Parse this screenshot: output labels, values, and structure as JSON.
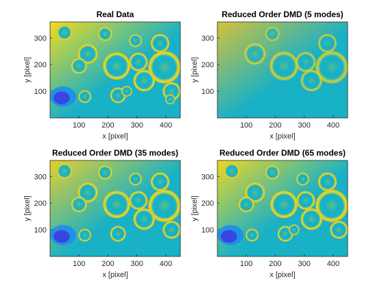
{
  "chart_data": [
    {
      "type": "heatmap",
      "title": "Real Data",
      "xlabel": "x [pixel]",
      "ylabel": "y [pixel]",
      "xlim": [
        0,
        450
      ],
      "ylim": [
        0,
        360
      ],
      "xticks": [
        100,
        200,
        300,
        400
      ],
      "yticks": [
        100,
        200,
        300
      ],
      "colormap": "parula",
      "colors": [
        "#3d3ee0",
        "#1f8fe8",
        "#19b1c6",
        "#5ec27d",
        "#c8bf3a",
        "#f4dc1a"
      ],
      "background_color": "#f4dc1a",
      "blobs": [
        {
          "x": 50,
          "y": 320,
          "r": 22
        },
        {
          "x": 130,
          "y": 240,
          "r": 28
        },
        {
          "x": 190,
          "y": 315,
          "r": 20
        },
        {
          "x": 230,
          "y": 195,
          "r": 38
        },
        {
          "x": 100,
          "y": 195,
          "r": 22
        },
        {
          "x": 295,
          "y": 290,
          "r": 18
        },
        {
          "x": 305,
          "y": 210,
          "r": 26
        },
        {
          "x": 395,
          "y": 190,
          "r": 45
        },
        {
          "x": 380,
          "y": 280,
          "r": 26
        },
        {
          "x": 420,
          "y": 100,
          "r": 25
        },
        {
          "x": 325,
          "y": 140,
          "r": 30
        },
        {
          "x": 120,
          "y": 80,
          "r": 18
        },
        {
          "x": 235,
          "y": 85,
          "r": 22
        },
        {
          "x": 265,
          "y": 100,
          "r": 15
        },
        {
          "x": 415,
          "y": 70,
          "r": 14
        }
      ]
    },
    {
      "type": "heatmap",
      "title": "Reduced Order DMD (5 modes)",
      "xlabel": "x [pixel]",
      "ylabel": "y [pixel]",
      "xlim": [
        0,
        450
      ],
      "ylim": [
        0,
        360
      ],
      "xticks": [
        100,
        200,
        300,
        400
      ],
      "yticks": [
        100,
        200,
        300
      ],
      "colormap": "parula",
      "colors": [
        "#3d3ee0",
        "#1f8fe8",
        "#19b1c6",
        "#5ec27d",
        "#c8bf3a",
        "#f4dc1a"
      ],
      "background_color": "#d5c238",
      "blobs": [
        {
          "x": 130,
          "y": 240,
          "r": 30
        },
        {
          "x": 230,
          "y": 195,
          "r": 40
        },
        {
          "x": 305,
          "y": 210,
          "r": 28
        },
        {
          "x": 395,
          "y": 190,
          "r": 45
        },
        {
          "x": 380,
          "y": 280,
          "r": 26
        },
        {
          "x": 325,
          "y": 140,
          "r": 30
        },
        {
          "x": 190,
          "y": 315,
          "r": 20
        }
      ]
    },
    {
      "type": "heatmap",
      "title": "Reduced Order DMD (35 modes)",
      "xlabel": "x [pixel]",
      "ylabel": "y [pixel]",
      "xlim": [
        0,
        450
      ],
      "ylim": [
        0,
        360
      ],
      "xticks": [
        100,
        200,
        300,
        400
      ],
      "yticks": [
        100,
        200,
        300
      ],
      "colormap": "parula",
      "colors": [
        "#3d3ee0",
        "#1f8fe8",
        "#19b1c6",
        "#5ec27d",
        "#c8bf3a",
        "#f4dc1a"
      ],
      "background_color": "#e8d028",
      "blobs": [
        {
          "x": 50,
          "y": 320,
          "r": 22
        },
        {
          "x": 130,
          "y": 240,
          "r": 28
        },
        {
          "x": 190,
          "y": 315,
          "r": 20
        },
        {
          "x": 230,
          "y": 195,
          "r": 38
        },
        {
          "x": 100,
          "y": 195,
          "r": 22
        },
        {
          "x": 295,
          "y": 290,
          "r": 18
        },
        {
          "x": 305,
          "y": 210,
          "r": 26
        },
        {
          "x": 395,
          "y": 190,
          "r": 45
        },
        {
          "x": 380,
          "y": 280,
          "r": 26
        },
        {
          "x": 420,
          "y": 100,
          "r": 25
        },
        {
          "x": 325,
          "y": 140,
          "r": 30
        },
        {
          "x": 120,
          "y": 80,
          "r": 18
        },
        {
          "x": 235,
          "y": 85,
          "r": 22
        }
      ]
    },
    {
      "type": "heatmap",
      "title": "Reduced Order DMD (65 modes)",
      "xlabel": "x [pixel]",
      "ylabel": "y [pixel]",
      "xlim": [
        0,
        450
      ],
      "ylim": [
        0,
        360
      ],
      "xticks": [
        100,
        200,
        300,
        400
      ],
      "yticks": [
        100,
        200,
        300
      ],
      "colormap": "parula",
      "colors": [
        "#3d3ee0",
        "#1f8fe8",
        "#19b1c6",
        "#5ec27d",
        "#c8bf3a",
        "#f4dc1a"
      ],
      "background_color": "#f0d820",
      "blobs": [
        {
          "x": 50,
          "y": 320,
          "r": 22
        },
        {
          "x": 130,
          "y": 240,
          "r": 28
        },
        {
          "x": 190,
          "y": 315,
          "r": 20
        },
        {
          "x": 230,
          "y": 195,
          "r": 38
        },
        {
          "x": 100,
          "y": 195,
          "r": 22
        },
        {
          "x": 295,
          "y": 290,
          "r": 18
        },
        {
          "x": 305,
          "y": 210,
          "r": 26
        },
        {
          "x": 395,
          "y": 190,
          "r": 45
        },
        {
          "x": 380,
          "y": 280,
          "r": 26
        },
        {
          "x": 420,
          "y": 100,
          "r": 25
        },
        {
          "x": 325,
          "y": 140,
          "r": 30
        },
        {
          "x": 120,
          "y": 80,
          "r": 18
        },
        {
          "x": 235,
          "y": 85,
          "r": 22
        },
        {
          "x": 265,
          "y": 100,
          "r": 15
        }
      ]
    }
  ]
}
